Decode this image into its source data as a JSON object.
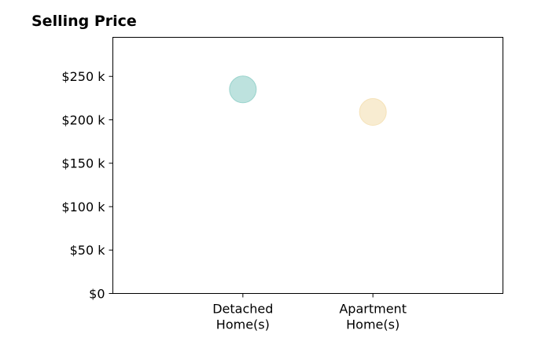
{
  "chart_data": {
    "type": "scatter",
    "title": "Selling Price",
    "xlabel": "",
    "ylabel": "",
    "categories": [
      [
        "Detached",
        "Home(s)"
      ],
      [
        "Apartment",
        "Home(s)"
      ]
    ],
    "points": [
      {
        "category": "Detached Home(s)",
        "value": 235000,
        "color": "#99d3cc"
      },
      {
        "category": "Apartment Home(s)",
        "value": 209000,
        "color": "#f5e2b8"
      }
    ],
    "ylim": [
      0,
      295000
    ],
    "yticks": [
      {
        "value": 0,
        "label": "$0"
      },
      {
        "value": 50000,
        "label": "$50 k"
      },
      {
        "value": 100000,
        "label": "$100 k"
      },
      {
        "value": 150000,
        "label": "$150 k"
      },
      {
        "value": 200000,
        "label": "$200 k"
      },
      {
        "value": 250000,
        "label": "$250 k"
      }
    ],
    "grid": false,
    "legend": "none"
  }
}
